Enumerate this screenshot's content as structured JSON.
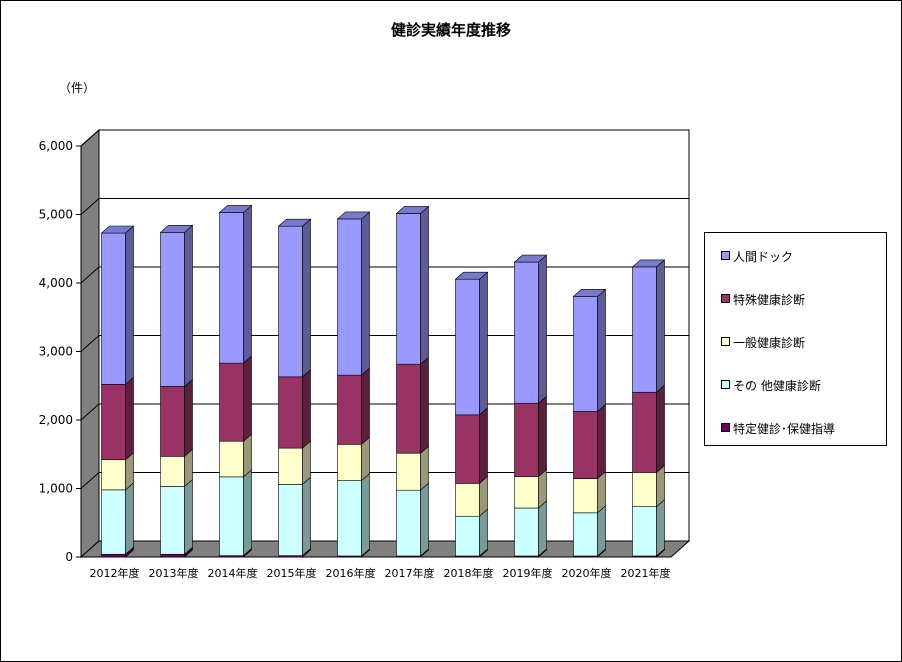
{
  "chart_data": {
    "type": "bar",
    "stacked": true,
    "title": "健診実績年度推移",
    "unit_label": "（件）",
    "ylim": [
      0,
      6000
    ],
    "yticks": [
      "0",
      "1,000",
      "2,000",
      "3,000",
      "4,000",
      "5,000",
      "6,000"
    ],
    "grid": true,
    "legend_position": "right",
    "categories": [
      "2012年度",
      "2013年度",
      "2014年度",
      "2015年度",
      "2016年度",
      "2017年度",
      "2018年度",
      "2019年度",
      "2020年度",
      "2021年度"
    ],
    "series": [
      {
        "name": "特定健診･保健指導",
        "color": "#660066",
        "values": [
          40,
          40,
          20,
          20,
          15,
          15,
          15,
          15,
          15,
          15
        ]
      },
      {
        "name": "その 他健康診断",
        "color": "#ccffff",
        "values": [
          940,
          990,
          1150,
          1040,
          1100,
          960,
          580,
          700,
          630,
          720
        ]
      },
      {
        "name": "一般健康診断",
        "color": "#ffffcc",
        "values": [
          440,
          440,
          520,
          530,
          530,
          540,
          480,
          460,
          500,
          500
        ]
      },
      {
        "name": "特殊健康診断",
        "color": "#993366",
        "values": [
          1100,
          1020,
          1140,
          1040,
          1010,
          1300,
          1000,
          1070,
          980,
          1170
        ]
      },
      {
        "name": "人間ドック",
        "color": "#9999ff",
        "values": [
          2210,
          2250,
          2200,
          2200,
          2280,
          2200,
          1980,
          2060,
          1680,
          1830
        ]
      }
    ]
  }
}
